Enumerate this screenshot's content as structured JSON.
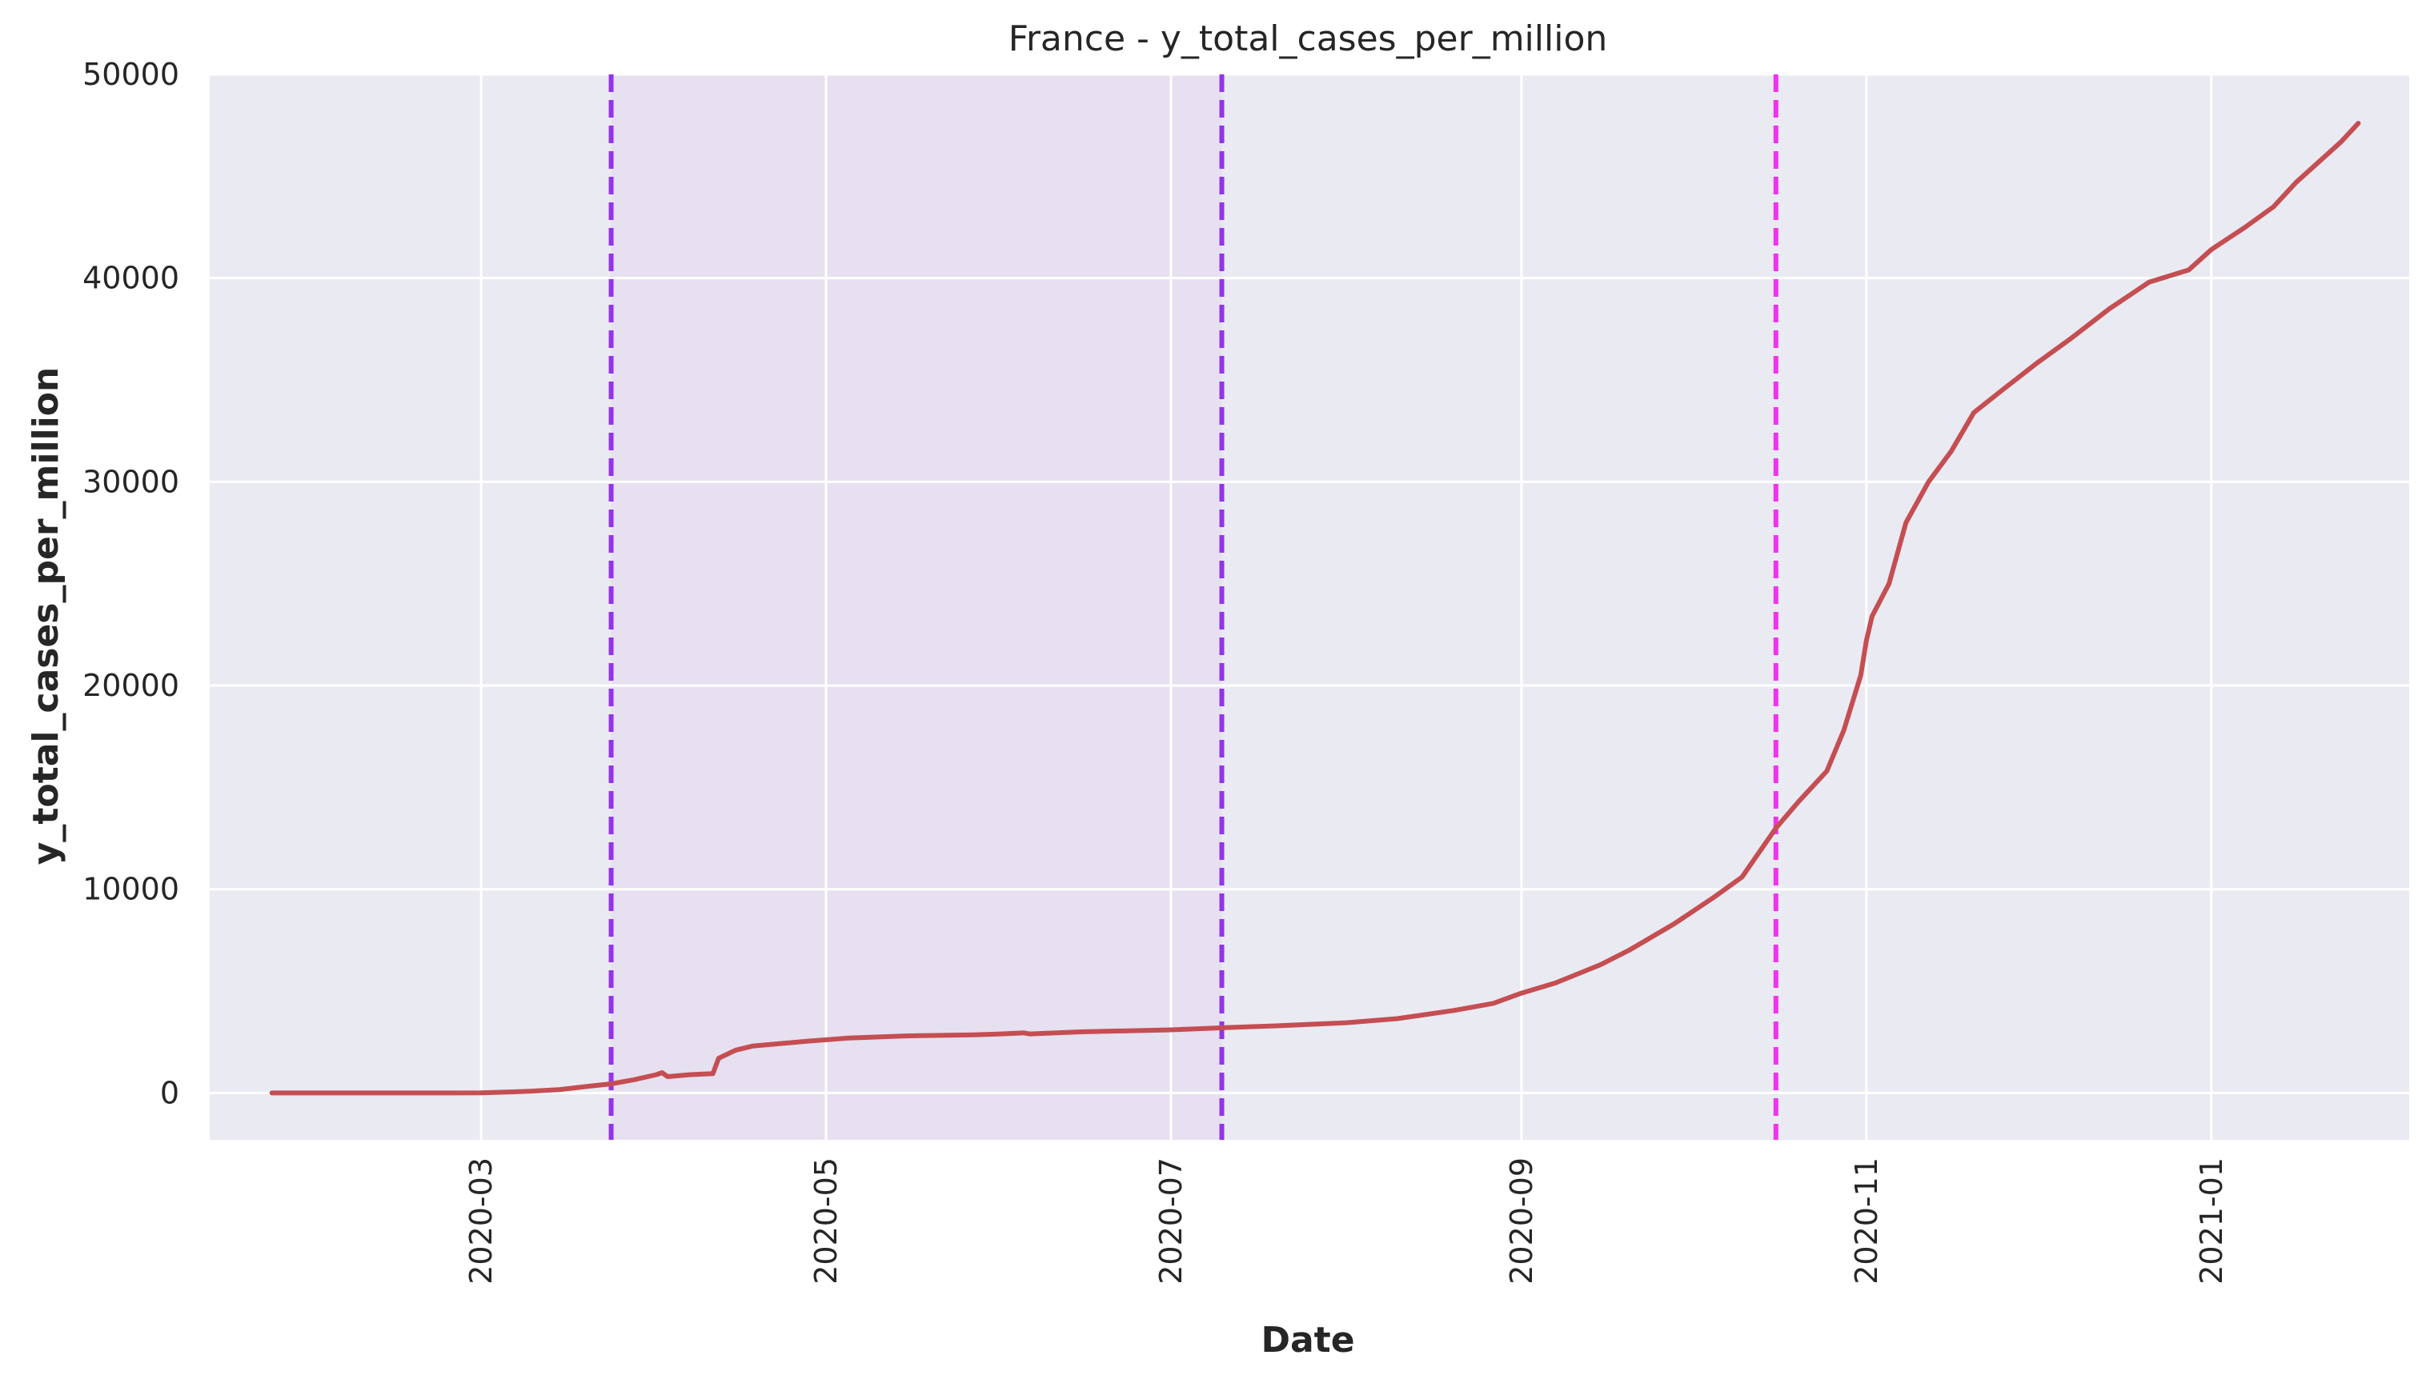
{
  "chart_data": {
    "type": "line",
    "title": "France - y_total_cases_per_million",
    "xlabel": "Date",
    "ylabel": "y_total_cases_per_million",
    "ylim": [
      -2300,
      50000
    ],
    "xlim": [
      "2020-01-13",
      "2021-02-05"
    ],
    "grid": true,
    "x_ticks": [
      "2020-03",
      "2020-05",
      "2020-07",
      "2020-09",
      "2020-11",
      "2021-01"
    ],
    "y_ticks": [
      "0",
      "10000",
      "20000",
      "30000",
      "40000",
      "50000"
    ],
    "colors": {
      "background": "#eaeaf2",
      "grid": "#ffffff",
      "series": "#c44e52",
      "shade": "#e6e0f0",
      "vline_purple": "#9333ea",
      "vline_magenta": "#ee33ee"
    },
    "shaded_region": {
      "start": "2020-03-24",
      "end": "2020-07-10"
    },
    "vlines": [
      {
        "x": "2020-03-24",
        "color": "#9333ea"
      },
      {
        "x": "2020-07-10",
        "color": "#9333ea"
      },
      {
        "x": "2020-10-16",
        "color": "#ee33ee"
      }
    ],
    "series": [
      {
        "x": [
          "2020-01-24",
          "2020-02-01",
          "2020-02-15",
          "2020-02-25",
          "2020-03-01",
          "2020-03-05",
          "2020-03-10",
          "2020-03-15",
          "2020-03-20",
          "2020-03-24",
          "2020-03-28",
          "2020-04-01",
          "2020-04-02",
          "2020-04-03",
          "2020-04-07",
          "2020-04-11",
          "2020-04-12",
          "2020-04-15",
          "2020-04-18",
          "2020-04-22",
          "2020-04-28",
          "2020-05-05",
          "2020-05-15",
          "2020-05-27",
          "2020-06-01",
          "2020-06-05",
          "2020-06-06",
          "2020-06-15",
          "2020-07-01",
          "2020-07-10",
          "2020-07-20",
          "2020-08-01",
          "2020-08-10",
          "2020-08-20",
          "2020-08-27",
          "2020-09-01",
          "2020-09-07",
          "2020-09-15",
          "2020-09-20",
          "2020-09-28",
          "2020-10-05",
          "2020-10-10",
          "2020-10-16",
          "2020-10-20",
          "2020-10-25",
          "2020-10-28",
          "2020-10-31",
          "2020-11-01",
          "2020-11-02",
          "2020-11-05",
          "2020-11-08",
          "2020-11-12",
          "2020-11-16",
          "2020-11-20",
          "2020-11-25",
          "2020-12-01",
          "2020-12-07",
          "2020-12-14",
          "2020-12-21",
          "2020-12-28",
          "2021-01-01",
          "2021-01-07",
          "2021-01-12",
          "2021-01-16",
          "2021-01-20",
          "2021-01-24",
          "2021-01-27"
        ],
        "values": [
          0,
          0,
          0,
          0,
          10,
          40,
          90,
          170,
          330,
          450,
          650,
          900,
          1000,
          800,
          900,
          950,
          1700,
          2100,
          2300,
          2400,
          2550,
          2700,
          2800,
          2850,
          2900,
          2950,
          2900,
          3000,
          3100,
          3200,
          3300,
          3450,
          3650,
          4050,
          4400,
          4900,
          5400,
          6300,
          7000,
          8300,
          9600,
          10600,
          13000,
          14300,
          15800,
          17800,
          20500,
          22200,
          23400,
          25000,
          28000,
          30000,
          31500,
          33400,
          34500,
          35800,
          37000,
          38500,
          39800,
          40400,
          41400,
          42500,
          43500,
          44700,
          45700,
          46700,
          47600
        ]
      }
    ]
  }
}
